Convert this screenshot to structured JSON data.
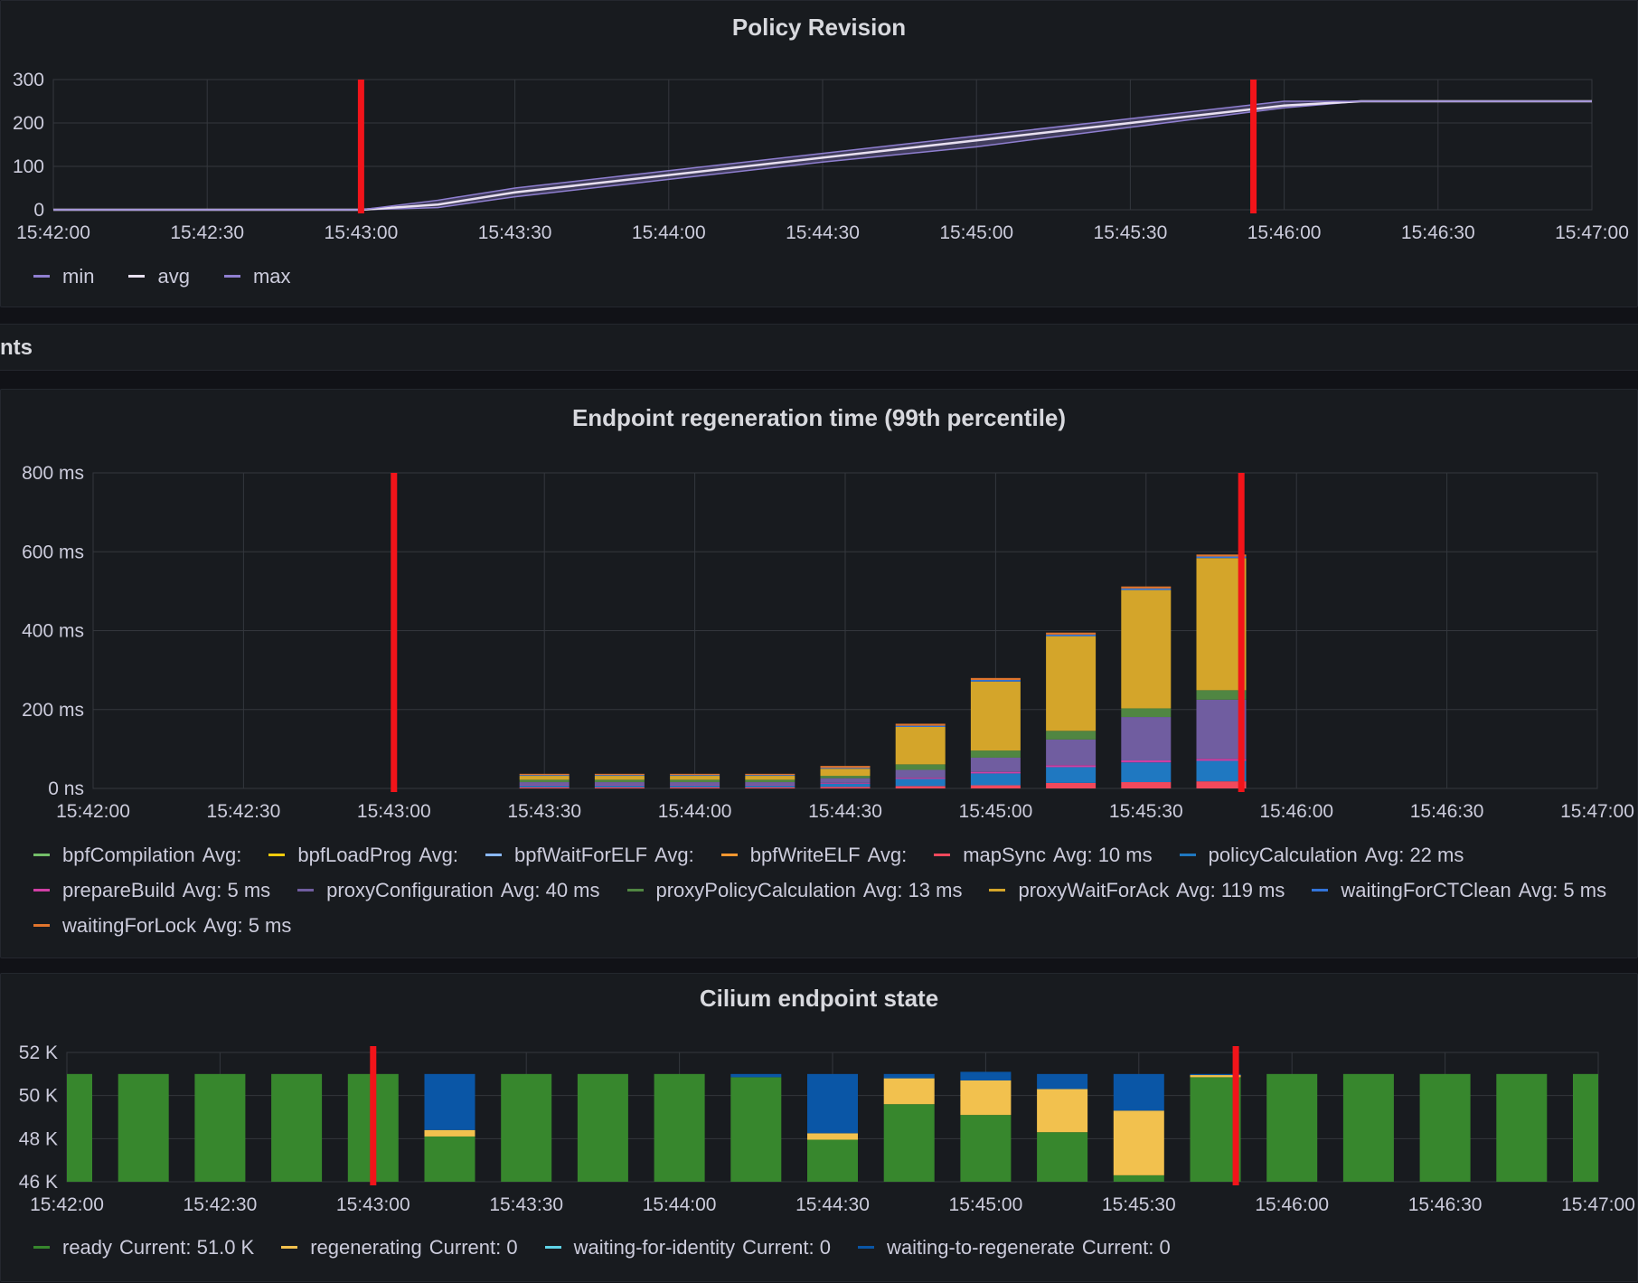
{
  "panels": {
    "policy": {
      "title": "Policy Revision"
    },
    "row": {
      "title": "nts"
    },
    "regen": {
      "title": "Endpoint regeneration time (99th percentile)"
    },
    "state": {
      "title": "Cilium endpoint state"
    }
  },
  "colors": {
    "annotation": "#f2141a",
    "grid": "#34373d",
    "text": "#ccccdc"
  },
  "chart_data": [
    {
      "type": "area",
      "title": "Policy Revision",
      "x_ticks": [
        "15:42:00",
        "15:42:30",
        "15:43:00",
        "15:43:30",
        "15:44:00",
        "15:44:30",
        "15:45:00",
        "15:45:30",
        "15:46:00",
        "15:46:30",
        "15:47:00"
      ],
      "y_ticks": [
        "0",
        "100",
        "200",
        "300"
      ],
      "xlim": [
        0,
        300
      ],
      "ylim": [
        0,
        300
      ],
      "annotations_x": [
        0,
        0
      ],
      "x": [
        0,
        60,
        75,
        90,
        120,
        150,
        180,
        210,
        240,
        255,
        270,
        300
      ],
      "series": [
        {
          "name": "min",
          "color": "#8f7fd0",
          "values": [
            0,
            0,
            5,
            30,
            70,
            110,
            145,
            190,
            235,
            250,
            250,
            250
          ]
        },
        {
          "name": "avg",
          "color": "#e8e0f0",
          "values": [
            0,
            0,
            12,
            40,
            80,
            120,
            160,
            200,
            240,
            250,
            250,
            250
          ]
        },
        {
          "name": "max",
          "color": "#8f7fd0",
          "values": [
            0,
            0,
            22,
            50,
            90,
            130,
            170,
            210,
            250,
            250,
            250,
            250
          ]
        }
      ],
      "annotations": [
        60,
        234
      ],
      "legend": "bottom-left"
    },
    {
      "type": "bar",
      "title": "Endpoint regeneration time (99th percentile)",
      "x_ticks": [
        "15:42:00",
        "15:42:30",
        "15:43:00",
        "15:43:30",
        "15:44:00",
        "15:44:30",
        "15:45:00",
        "15:45:30",
        "15:46:00",
        "15:46:30",
        "15:47:00"
      ],
      "y_ticks": [
        "0 ns",
        "200 ms",
        "400 ms",
        "600 ms",
        "800 ms"
      ],
      "xlim": [
        0,
        300
      ],
      "ylim": [
        0,
        800
      ],
      "annotations": [
        60,
        229
      ],
      "x": [
        90,
        105,
        120,
        135,
        150,
        165,
        180,
        195,
        210,
        225
      ],
      "series": [
        {
          "name": "mapSync",
          "legend_value": "Avg: 10 ms",
          "color": "#f2495c",
          "values": [
            3,
            3,
            3,
            3,
            4,
            6,
            8,
            14,
            16,
            18
          ]
        },
        {
          "name": "policyCalculation",
          "legend_value": "Avg: 22 ms",
          "color": "#1f78c1",
          "values": [
            4,
            4,
            4,
            4,
            8,
            18,
            30,
            40,
            50,
            52
          ]
        },
        {
          "name": "prepareBuild",
          "legend_value": "Avg: 5 ms",
          "color": "#d03fa5",
          "values": [
            1,
            1,
            1,
            1,
            2,
            3,
            4,
            5,
            5,
            5
          ]
        },
        {
          "name": "proxyConfiguration",
          "legend_value": "Avg: 40 ms",
          "color": "#705da0",
          "values": [
            8,
            8,
            8,
            8,
            12,
            20,
            36,
            65,
            110,
            150
          ]
        },
        {
          "name": "proxyPolicyCalculation",
          "legend_value": "Avg: 13 ms",
          "color": "#508642",
          "values": [
            6,
            6,
            6,
            6,
            6,
            14,
            18,
            22,
            22,
            24
          ]
        },
        {
          "name": "proxyWaitForAck",
          "legend_value": "Avg: 119 ms",
          "color": "#d4a52a",
          "values": [
            10,
            10,
            10,
            10,
            18,
            95,
            175,
            240,
            300,
            335
          ]
        },
        {
          "name": "waitingForCTClean",
          "legend_value": "Avg: 5 ms",
          "color": "#3274d9",
          "values": [
            2,
            2,
            2,
            2,
            2,
            3,
            4,
            4,
            4,
            4
          ]
        },
        {
          "name": "waitingForLock",
          "legend_value": "Avg: 5 ms",
          "color": "#e0752d",
          "values": [
            3,
            3,
            3,
            3,
            5,
            5,
            5,
            5,
            5,
            5
          ]
        }
      ],
      "legend_items": [
        {
          "name": "bpfCompilation",
          "value": "Avg:",
          "color": "#73bf69"
        },
        {
          "name": "bpfLoadProg",
          "value": "Avg:",
          "color": "#f2cc0c"
        },
        {
          "name": "bpfWaitForELF",
          "value": "Avg:",
          "color": "#8ab8ff"
        },
        {
          "name": "bpfWriteELF",
          "value": "Avg:",
          "color": "#ff9830"
        },
        {
          "name": "mapSync",
          "value": "Avg: 10 ms",
          "color": "#f2495c"
        },
        {
          "name": "policyCalculation",
          "value": "Avg: 22 ms",
          "color": "#1f78c1"
        },
        {
          "name": "prepareBuild",
          "value": "Avg: 5 ms",
          "color": "#d03fa5"
        },
        {
          "name": "proxyConfiguration",
          "value": "Avg: 40 ms",
          "color": "#705da0"
        },
        {
          "name": "proxyPolicyCalculation",
          "value": "Avg: 13 ms",
          "color": "#508642"
        },
        {
          "name": "proxyWaitForAck",
          "value": "Avg: 119 ms",
          "color": "#d4a52a"
        },
        {
          "name": "waitingForCTClean",
          "value": "Avg: 5 ms",
          "color": "#3274d9"
        },
        {
          "name": "waitingForLock",
          "value": "Avg: 5 ms",
          "color": "#e0752d"
        }
      ],
      "legend": "bottom-left"
    },
    {
      "type": "bar",
      "title": "Cilium endpoint state",
      "x_ticks": [
        "15:42:00",
        "15:42:30",
        "15:43:00",
        "15:43:30",
        "15:44:00",
        "15:44:30",
        "15:45:00",
        "15:45:30",
        "15:46:00",
        "15:46:30",
        "15:47:00"
      ],
      "y_ticks": [
        "46 K",
        "48 K",
        "50 K",
        "52 K"
      ],
      "xlim": [
        0,
        300
      ],
      "ylim": [
        46000,
        52000
      ],
      "annotations": [
        60,
        229
      ],
      "x": [
        0,
        15,
        30,
        45,
        60,
        75,
        90,
        105,
        120,
        135,
        150,
        165,
        180,
        195,
        210,
        225,
        240,
        255,
        270,
        285,
        300
      ],
      "series": [
        {
          "name": "ready",
          "legend_value": "Current: 51.0 K",
          "color": "#37872d",
          "values": [
            51000,
            51000,
            51000,
            51000,
            51000,
            48100,
            51000,
            51000,
            51000,
            50850,
            47950,
            49600,
            49100,
            48300,
            46300,
            50850,
            51000,
            51000,
            51000,
            51000,
            51000
          ]
        },
        {
          "name": "regenerating",
          "legend_value": "Current: 0",
          "color": "#f2c14e",
          "values": [
            0,
            0,
            0,
            0,
            0,
            300,
            0,
            0,
            0,
            0,
            300,
            1200,
            1600,
            2000,
            3000,
            100,
            0,
            0,
            0,
            0,
            0
          ]
        },
        {
          "name": "waiting-for-identity",
          "legend_value": "Current: 0",
          "color": "#5fd3e6",
          "values": [
            0,
            0,
            0,
            0,
            0,
            0,
            0,
            0,
            0,
            0,
            0,
            0,
            0,
            0,
            0,
            0,
            0,
            0,
            0,
            0,
            0
          ]
        },
        {
          "name": "waiting-to-regenerate",
          "legend_value": "Current: 0",
          "color": "#0a56a6",
          "values": [
            0,
            0,
            0,
            0,
            0,
            2600,
            0,
            0,
            0,
            150,
            2750,
            200,
            400,
            700,
            1700,
            50,
            0,
            0,
            0,
            0,
            0
          ]
        }
      ],
      "legend": "bottom-left"
    }
  ]
}
